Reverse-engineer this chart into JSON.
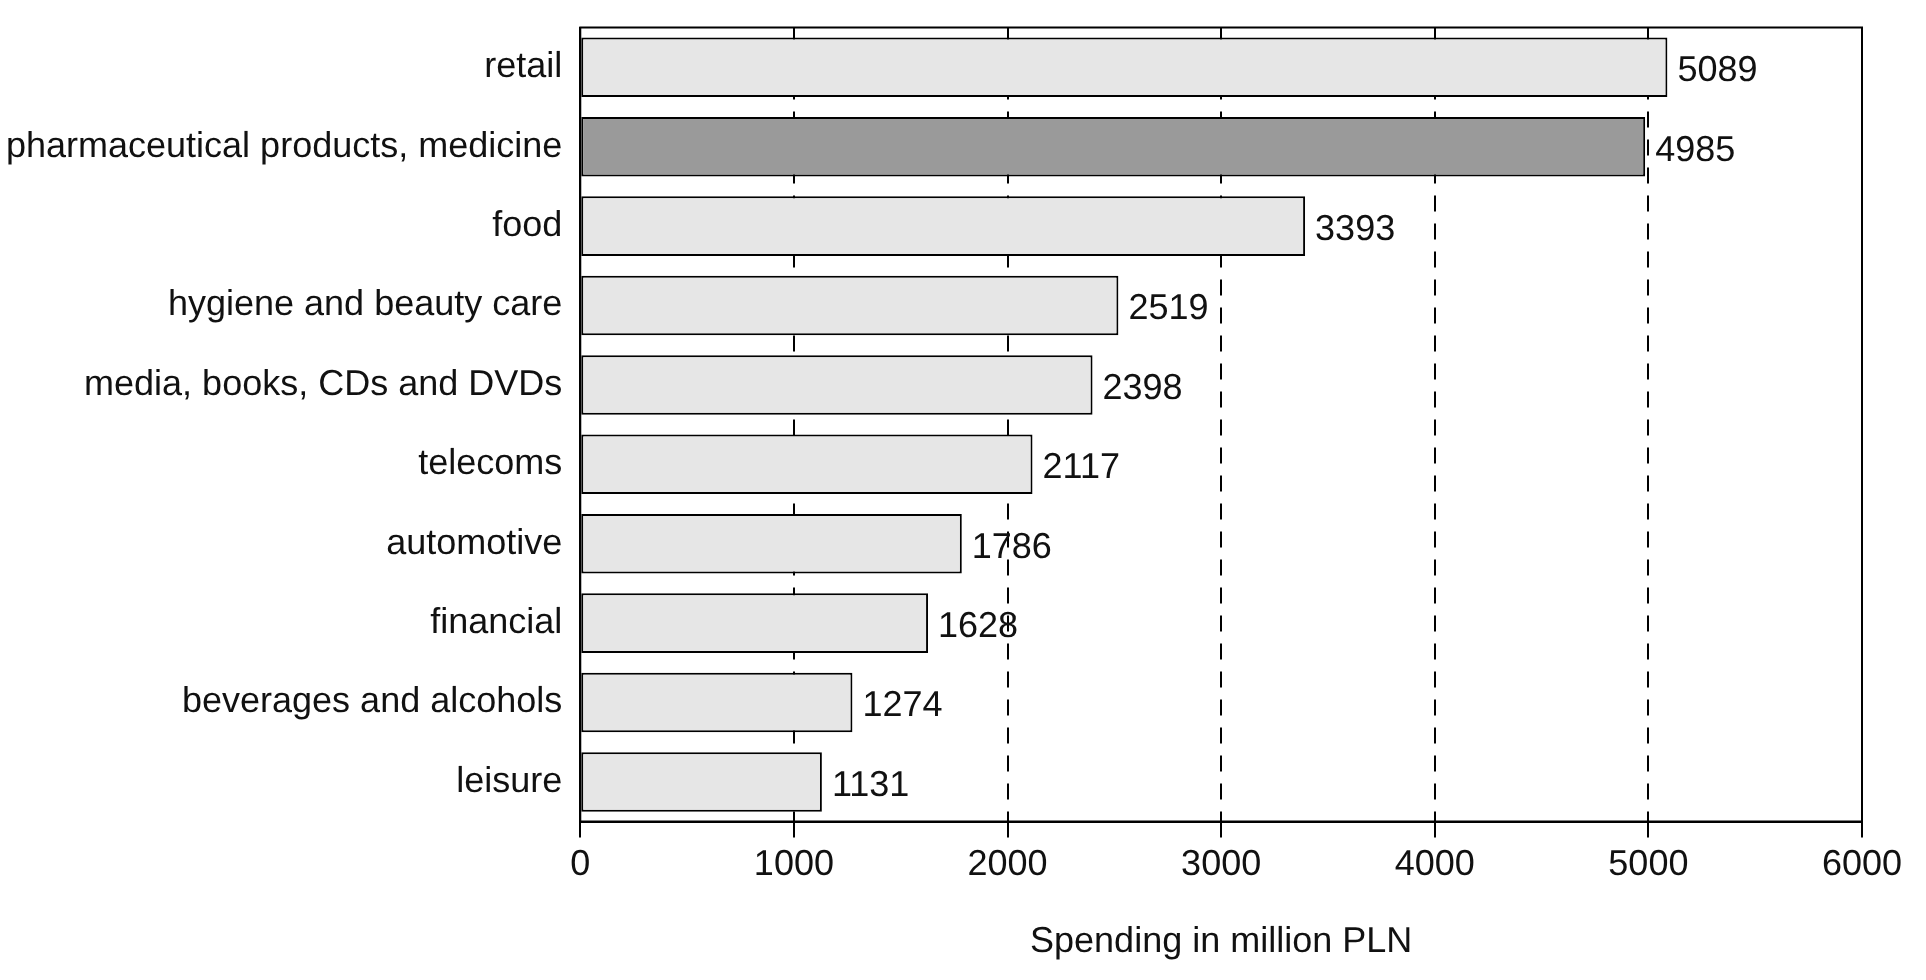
{
  "chart_data": {
    "type": "bar",
    "orientation": "horizontal",
    "xlabel": "Spending in million PLN",
    "categories": [
      "retail",
      "pharmaceutical products, medicine",
      "food",
      "hygiene and beauty care",
      "media, books, CDs and DVDs",
      "telecoms",
      "automotive",
      "financial",
      "beverages and alcohols",
      "leisure"
    ],
    "values": [
      5089,
      4985,
      3393,
      2519,
      2398,
      2117,
      1786,
      1628,
      1274,
      1131
    ],
    "colors": [
      "#e6e6e6",
      "#9a9a9a",
      "#e6e6e6",
      "#e6e6e6",
      "#e6e6e6",
      "#e6e6e6",
      "#e6e6e6",
      "#e6e6e6",
      "#e6e6e6",
      "#e6e6e6"
    ],
    "xlim": [
      0,
      6000
    ],
    "xticks": [
      0,
      1000,
      2000,
      3000,
      4000,
      5000,
      6000
    ],
    "grid": "x",
    "data_labels": true
  }
}
